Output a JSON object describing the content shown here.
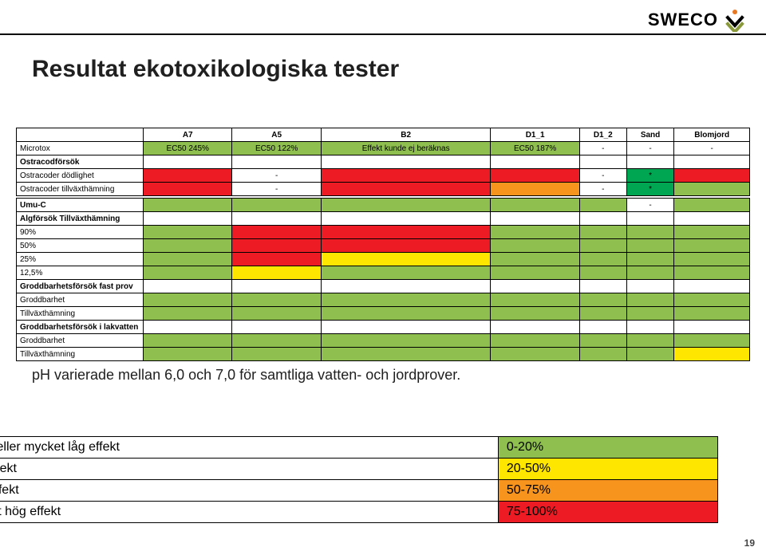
{
  "brand": {
    "name": "SWECO"
  },
  "title": "Resultat ekotoxikologiska tester",
  "note": "pH varierade mellan 6,0 och 7,0 för samtliga vatten- och jordprover.",
  "pageNumber": "19",
  "colors": {
    "green": "#8fbf4f",
    "deepGreen": "#00a651",
    "yellow": "#ffe600",
    "orange": "#f7941e",
    "red": "#ed1c24",
    "white": "#ffffff"
  },
  "columns": [
    "A7",
    "A5",
    "B2",
    "D1_1",
    "D1_2",
    "Sand",
    "Blomjord"
  ],
  "rows": [
    {
      "label": "Microtox",
      "bold": false,
      "cells": [
        {
          "text": "EC50 245%",
          "bg": "green"
        },
        {
          "text": "EC50 122%",
          "bg": "green"
        },
        {
          "text": "Effekt kunde ej beräknas",
          "bg": "green"
        },
        {
          "text": "EC50 187%",
          "bg": "green"
        },
        {
          "text": "-",
          "bg": "white"
        },
        {
          "text": "-",
          "bg": "white"
        },
        {
          "text": "-",
          "bg": "white"
        }
      ]
    },
    {
      "label": "Ostracodförsök",
      "bold": true,
      "cells": [
        {
          "bg": "white"
        },
        {
          "bg": "white"
        },
        {
          "bg": "white"
        },
        {
          "bg": "white"
        },
        {
          "bg": "white"
        },
        {
          "bg": "white"
        },
        {
          "bg": "white"
        }
      ]
    },
    {
      "label": "Ostracoder dödlighet",
      "bold": false,
      "cells": [
        {
          "bg": "red"
        },
        {
          "text": "-",
          "bg": "white"
        },
        {
          "bg": "red"
        },
        {
          "bg": "red"
        },
        {
          "text": "-",
          "bg": "white"
        },
        {
          "text": "*",
          "bg": "deepGreen"
        },
        {
          "bg": "red"
        }
      ]
    },
    {
      "label": "Ostracoder tillväxthämning",
      "bold": false,
      "cells": [
        {
          "bg": "red"
        },
        {
          "text": "-",
          "bg": "white"
        },
        {
          "bg": "red"
        },
        {
          "bg": "orange"
        },
        {
          "text": "-",
          "bg": "white"
        },
        {
          "text": "*",
          "bg": "deepGreen"
        },
        {
          "bg": "green"
        }
      ]
    },
    {
      "spacer": true
    },
    {
      "label": "Umu-C",
      "bold": true,
      "cells": [
        {
          "bg": "green"
        },
        {
          "bg": "green"
        },
        {
          "bg": "green"
        },
        {
          "bg": "green"
        },
        {
          "bg": "green"
        },
        {
          "text": "-",
          "bg": "white"
        },
        {
          "bg": "green"
        }
      ]
    },
    {
      "label": "Algförsök Tillväxthämning",
      "bold": true,
      "cells": [
        {
          "bg": "white"
        },
        {
          "bg": "white"
        },
        {
          "bg": "white"
        },
        {
          "bg": "white"
        },
        {
          "bg": "white"
        },
        {
          "bg": "white"
        },
        {
          "bg": "white"
        }
      ]
    },
    {
      "label": "90%",
      "bold": false,
      "cells": [
        {
          "bg": "green"
        },
        {
          "bg": "red"
        },
        {
          "bg": "red"
        },
        {
          "bg": "green"
        },
        {
          "bg": "green"
        },
        {
          "bg": "green"
        },
        {
          "bg": "green"
        }
      ]
    },
    {
      "label": "50%",
      "bold": false,
      "cells": [
        {
          "bg": "green"
        },
        {
          "bg": "red"
        },
        {
          "bg": "red"
        },
        {
          "bg": "green"
        },
        {
          "bg": "green"
        },
        {
          "bg": "green"
        },
        {
          "bg": "green"
        }
      ]
    },
    {
      "label": "25%",
      "bold": false,
      "cells": [
        {
          "bg": "green"
        },
        {
          "bg": "red"
        },
        {
          "bg": "yellow"
        },
        {
          "bg": "green"
        },
        {
          "bg": "green"
        },
        {
          "bg": "green"
        },
        {
          "bg": "green"
        }
      ]
    },
    {
      "label": "12,5%",
      "bold": false,
      "cells": [
        {
          "bg": "green"
        },
        {
          "bg": "yellow"
        },
        {
          "bg": "green"
        },
        {
          "bg": "green"
        },
        {
          "bg": "green"
        },
        {
          "bg": "green"
        },
        {
          "bg": "green"
        }
      ]
    },
    {
      "label": "Groddbarhetsförsök fast prov",
      "bold": true,
      "cells": [
        {
          "bg": "white"
        },
        {
          "bg": "white"
        },
        {
          "bg": "white"
        },
        {
          "bg": "white"
        },
        {
          "bg": "white"
        },
        {
          "bg": "white"
        },
        {
          "bg": "white"
        }
      ]
    },
    {
      "label": "Groddbarhet",
      "bold": false,
      "cells": [
        {
          "bg": "green"
        },
        {
          "bg": "green"
        },
        {
          "bg": "green"
        },
        {
          "bg": "green"
        },
        {
          "bg": "green"
        },
        {
          "bg": "green"
        },
        {
          "bg": "green"
        }
      ]
    },
    {
      "label": "Tillväxthämning",
      "bold": false,
      "cells": [
        {
          "bg": "green"
        },
        {
          "bg": "green"
        },
        {
          "bg": "green"
        },
        {
          "bg": "green"
        },
        {
          "bg": "green"
        },
        {
          "bg": "green"
        },
        {
          "bg": "green"
        }
      ]
    },
    {
      "label": "Groddbarhetsförsök i lakvatten",
      "bold": true,
      "cells": [
        {
          "bg": "white"
        },
        {
          "bg": "white"
        },
        {
          "bg": "white"
        },
        {
          "bg": "white"
        },
        {
          "bg": "white"
        },
        {
          "bg": "white"
        },
        {
          "bg": "white"
        }
      ]
    },
    {
      "label": "Groddbarhet",
      "bold": false,
      "cells": [
        {
          "bg": "green"
        },
        {
          "bg": "green"
        },
        {
          "bg": "green"
        },
        {
          "bg": "green"
        },
        {
          "bg": "green"
        },
        {
          "bg": "green"
        },
        {
          "bg": "green"
        }
      ]
    },
    {
      "label": "Tillväxthämning",
      "bold": false,
      "cells": [
        {
          "bg": "green"
        },
        {
          "bg": "green"
        },
        {
          "bg": "green"
        },
        {
          "bg": "green"
        },
        {
          "bg": "green"
        },
        {
          "bg": "green"
        },
        {
          "bg": "yellow"
        }
      ]
    }
  ],
  "legend": [
    {
      "label": "Ingen eller mycket låg effekt",
      "range": "0-20%",
      "bg": "green"
    },
    {
      "label": "Låg effekt",
      "range": "20-50%",
      "bg": "yellow"
    },
    {
      "label": "Hög effekt",
      "range": "50-75%",
      "bg": "orange"
    },
    {
      "label": "Mycket hög effekt",
      "range": "75-100%",
      "bg": "red"
    }
  ]
}
